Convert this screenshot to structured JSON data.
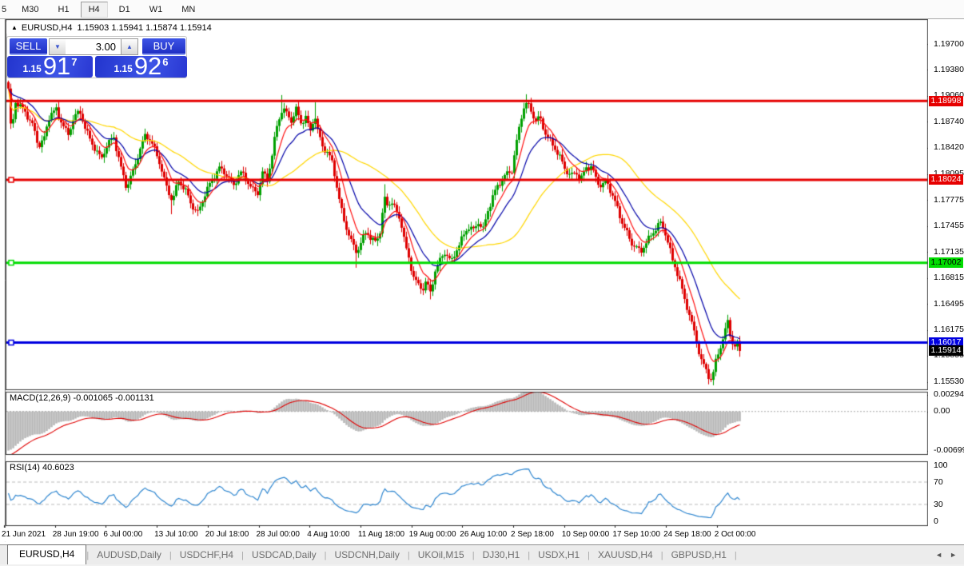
{
  "toolbar": {
    "buttons": [
      {
        "label": "5",
        "active": false
      },
      {
        "label": "M30",
        "active": false
      },
      {
        "label": "H1",
        "active": false
      },
      {
        "label": "H4",
        "active": true
      },
      {
        "label": "D1",
        "active": false
      },
      {
        "label": "W1",
        "active": false
      },
      {
        "label": "MN",
        "active": false
      }
    ]
  },
  "header": {
    "collapse_icon": "▲",
    "symbol_title": "EURUSD,H4",
    "ohlc": "1.15903 1.15941 1.15874 1.15914"
  },
  "trade_panel": {
    "sell_label": "SELL",
    "buy_label": "BUY",
    "volume": "3.00",
    "spin_down_icon": "▼",
    "spin_up_icon": "▲",
    "bid": {
      "prefix": "1.15",
      "main": "91",
      "sup": "7"
    },
    "ask": {
      "prefix": "1.15",
      "main": "92",
      "sup": "6"
    }
  },
  "chart_data": {
    "type": "candlestick",
    "symbol": "EURUSD",
    "timeframe": "H4",
    "up_color": "#00A000",
    "down_color": "#DE0000",
    "y_axis_ticks": [
      {
        "label": "1.19700",
        "price": 1.197
      },
      {
        "label": "1.19380",
        "price": 1.1938
      },
      {
        "label": "1.19060",
        "price": 1.1906
      },
      {
        "label": "1.18740",
        "price": 1.1874
      },
      {
        "label": "1.18420",
        "price": 1.1842
      },
      {
        "label": "1.18095",
        "price": 1.18095
      },
      {
        "label": "1.17775",
        "price": 1.17775
      },
      {
        "label": "1.17455",
        "price": 1.17455
      },
      {
        "label": "1.17135",
        "price": 1.17135
      },
      {
        "label": "1.16815",
        "price": 1.16815
      },
      {
        "label": "1.16495",
        "price": 1.16495
      },
      {
        "label": "1.16175",
        "price": 1.16175
      },
      {
        "label": "1.15855",
        "price": 1.15855
      },
      {
        "label": "1.15530",
        "price": 1.1553
      }
    ],
    "levels": [
      {
        "label": "1.18998",
        "price": 1.18998,
        "color": "#E60000",
        "text_color": "#FFFFFF",
        "marker": false
      },
      {
        "label": "1.18024",
        "price": 1.18024,
        "color": "#E60000",
        "text_color": "#FFFFFF",
        "marker": true
      },
      {
        "label": "1.17002",
        "price": 1.17002,
        "color": "#00DC00",
        "text_color": "#000000",
        "marker": true
      },
      {
        "label": "1.16017",
        "price": 1.16017,
        "color": "#0000E0",
        "text_color": "#FFFFFF",
        "marker": true
      }
    ],
    "current_price": {
      "label": "1.15914",
      "price": 1.15914,
      "color": "#000000",
      "text_color": "#FFFFFF"
    },
    "moving_averages": [
      {
        "type": "ema",
        "period": 8,
        "color": "#FF1010"
      },
      {
        "type": "ema",
        "period": 18,
        "color": "#0000A8"
      },
      {
        "type": "sma",
        "period": 45,
        "color": "#FFD700"
      }
    ],
    "price_path": [
      [
        10,
        1.1915
      ],
      [
        14,
        1.1852
      ],
      [
        18,
        1.1898
      ],
      [
        25,
        1.1892
      ],
      [
        32,
        1.1886
      ],
      [
        40,
        1.1872
      ],
      [
        48,
        1.1843
      ],
      [
        55,
        1.1852
      ],
      [
        62,
        1.1884
      ],
      [
        70,
        1.189
      ],
      [
        78,
        1.1872
      ],
      [
        85,
        1.1856
      ],
      [
        92,
        1.1879
      ],
      [
        100,
        1.1886
      ],
      [
        108,
        1.1863
      ],
      [
        118,
        1.1841
      ],
      [
        126,
        1.1826
      ],
      [
        134,
        1.1846
      ],
      [
        142,
        1.1857
      ],
      [
        150,
        1.1821
      ],
      [
        158,
        1.1791
      ],
      [
        166,
        1.1812
      ],
      [
        174,
        1.1839
      ],
      [
        182,
        1.1861
      ],
      [
        190,
        1.1846
      ],
      [
        198,
        1.1826
      ],
      [
        207,
        1.1796
      ],
      [
        215,
        1.1779
      ],
      [
        223,
        1.1801
      ],
      [
        231,
        1.1789
      ],
      [
        239,
        1.1771
      ],
      [
        247,
        1.1763
      ],
      [
        256,
        1.1786
      ],
      [
        265,
        1.1801
      ],
      [
        274,
        1.1816
      ],
      [
        283,
        1.1811
      ],
      [
        292,
        1.1796
      ],
      [
        300,
        1.1811
      ],
      [
        308,
        1.1801
      ],
      [
        316,
        1.1791
      ],
      [
        322,
        1.1788
      ],
      [
        328,
        1.1812
      ],
      [
        334,
        1.1801
      ],
      [
        340,
        1.1832
      ],
      [
        346,
        1.1868
      ],
      [
        353,
        1.1893
      ],
      [
        358,
        1.1886
      ],
      [
        364,
        1.1876
      ],
      [
        370,
        1.1888
      ],
      [
        376,
        1.1871
      ],
      [
        382,
        1.1879
      ],
      [
        388,
        1.1863
      ],
      [
        393,
        1.1886
      ],
      [
        398,
        1.1859
      ],
      [
        404,
        1.1841
      ],
      [
        410,
        1.1833
      ],
      [
        416,
        1.1821
      ],
      [
        422,
        1.1789
      ],
      [
        428,
        1.1761
      ],
      [
        434,
        1.1741
      ],
      [
        440,
        1.1723
      ],
      [
        446,
        1.1711
      ],
      [
        452,
        1.1726
      ],
      [
        458,
        1.1741
      ],
      [
        464,
        1.1731
      ],
      [
        470,
        1.1726
      ],
      [
        476,
        1.1741
      ],
      [
        480,
        1.1779
      ],
      [
        484,
        1.1769
      ],
      [
        490,
        1.1776
      ],
      [
        496,
        1.1763
      ],
      [
        502,
        1.1749
      ],
      [
        508,
        1.1716
      ],
      [
        514,
        1.1691
      ],
      [
        520,
        1.1676
      ],
      [
        527,
        1.1666
      ],
      [
        533,
        1.1681
      ],
      [
        538,
        1.1663
      ],
      [
        544,
        1.1691
      ],
      [
        550,
        1.1701
      ],
      [
        557,
        1.1713
      ],
      [
        564,
        1.1701
      ],
      [
        571,
        1.1719
      ],
      [
        578,
        1.1731
      ],
      [
        585,
        1.1743
      ],
      [
        592,
        1.1739
      ],
      [
        598,
        1.1751
      ],
      [
        604,
        1.1743
      ],
      [
        610,
        1.1766
      ],
      [
        616,
        1.1781
      ],
      [
        622,
        1.1793
      ],
      [
        628,
        1.1801
      ],
      [
        634,
        1.1811
      ],
      [
        640,
        1.1816
      ],
      [
        646,
        1.1851
      ],
      [
        652,
        1.1881
      ],
      [
        657,
        1.1896
      ],
      [
        663,
        1.1889
      ],
      [
        669,
        1.1876
      ],
      [
        675,
        1.1881
      ],
      [
        681,
        1.1863
      ],
      [
        687,
        1.1851
      ],
      [
        693,
        1.1841
      ],
      [
        700,
        1.1829
      ],
      [
        707,
        1.1816
      ],
      [
        714,
        1.1809
      ],
      [
        720,
        1.1813
      ],
      [
        726,
        1.1801
      ],
      [
        733,
        1.1816
      ],
      [
        740,
        1.1819
      ],
      [
        746,
        1.1803
      ],
      [
        752,
        1.1796
      ],
      [
        758,
        1.1801
      ],
      [
        764,
        1.1786
      ],
      [
        770,
        1.1771
      ],
      [
        777,
        1.1753
      ],
      [
        783,
        1.1741
      ],
      [
        789,
        1.1726
      ],
      [
        795,
        1.1719
      ],
      [
        801,
        1.1711
      ],
      [
        807,
        1.1723
      ],
      [
        813,
        1.1733
      ],
      [
        819,
        1.1743
      ],
      [
        825,
        1.1751
      ],
      [
        831,
        1.1739
      ],
      [
        836,
        1.1721
      ],
      [
        841,
        1.1701
      ],
      [
        846,
        1.1691
      ],
      [
        851,
        1.1676
      ],
      [
        856,
        1.1656
      ],
      [
        861,
        1.1641
      ],
      [
        866,
        1.1621
      ],
      [
        871,
        1.1601
      ],
      [
        876,
        1.1581
      ],
      [
        881,
        1.1571
      ],
      [
        886,
        1.1562
      ],
      [
        890,
        1.1557
      ],
      [
        894,
        1.1576
      ],
      [
        898,
        1.1589
      ],
      [
        902,
        1.1599
      ],
      [
        906,
        1.1611
      ],
      [
        910,
        1.1626
      ],
      [
        914,
        1.1606
      ],
      [
        918,
        1.1596
      ],
      [
        922,
        1.1601
      ],
      [
        926,
        1.15914
      ]
    ],
    "wick_spikes_high": [
      [
        353,
        1.1907
      ],
      [
        393,
        1.1898
      ],
      [
        480,
        1.1797
      ],
      [
        657,
        1.1908
      ],
      [
        910,
        1.1636
      ]
    ],
    "wick_spikes_low": [
      [
        215,
        1.176
      ],
      [
        446,
        1.1694
      ],
      [
        538,
        1.1655
      ],
      [
        888,
        1.1553
      ]
    ],
    "last_close": 1.15914,
    "macd": {
      "label": "MACD(12,26,9) -0.001065 -0.001131",
      "params": [
        12,
        26,
        9
      ],
      "values_text": [
        "-0.001065",
        "-0.001131"
      ],
      "scale": [
        {
          "label": "0.00294",
          "value": 0.00294
        },
        {
          "label": "0.00",
          "value": 0
        },
        {
          "label": "-0.00699",
          "value": -0.00699
        }
      ],
      "hist_color": "#B8B8B8",
      "signal_color": "#E00000"
    },
    "rsi": {
      "label": "RSI(14) 40.6023",
      "period": 14,
      "value_text": "40.6023",
      "scale": [
        {
          "label": "100",
          "value": 100
        },
        {
          "label": "70",
          "value": 70
        },
        {
          "label": "30",
          "value": 30
        },
        {
          "label": "0",
          "value": 0
        }
      ],
      "line_color": "#2E86D0",
      "level_lines": [
        70,
        30
      ]
    },
    "x_axis_labels": [
      "21 Jun 2021",
      "28 Jun 19:00",
      "6 Jul 00:00",
      "13 Jul 10:00",
      "20 Jul 18:00",
      "28 Jul 00:00",
      "4 Aug 10:00",
      "11 Aug 18:00",
      "19 Aug 00:00",
      "26 Aug 10:00",
      "2 Sep 18:00",
      "10 Sep 00:00",
      "17 Sep 10:00",
      "24 Sep 18:00",
      "2 Oct 00:00"
    ]
  },
  "tabs": {
    "items": [
      {
        "label": "EURUSD,H4",
        "active": true
      },
      {
        "label": "AUDUSD,Daily",
        "active": false
      },
      {
        "label": "USDCHF,H4",
        "active": false
      },
      {
        "label": "USDCAD,Daily",
        "active": false
      },
      {
        "label": "USDCNH,Daily",
        "active": false
      },
      {
        "label": "UKOil,M15",
        "active": false
      },
      {
        "label": "DJ30,H1",
        "active": false
      },
      {
        "label": "USDX,H1",
        "active": false
      },
      {
        "label": "XAUUSD,H4",
        "active": false
      },
      {
        "label": "GBPUSD,H1",
        "active": false
      }
    ],
    "separator": "|",
    "scroll_left_icon": "◄",
    "scroll_right_icon": "►"
  }
}
